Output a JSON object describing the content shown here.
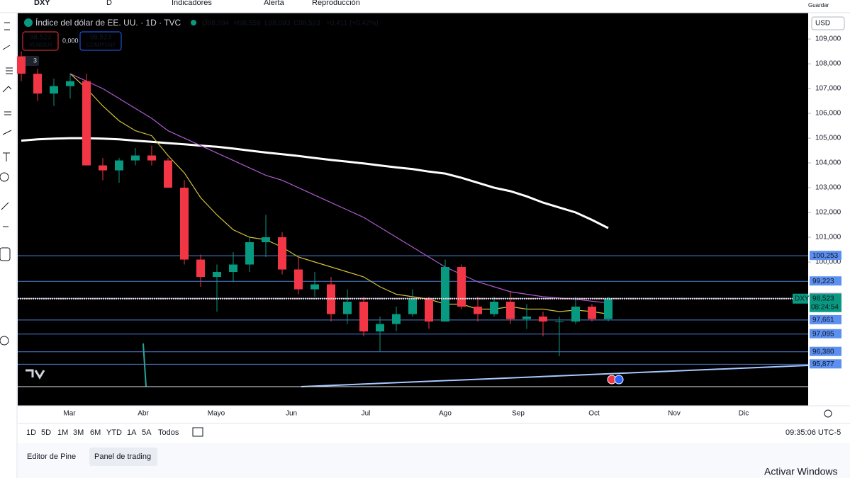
{
  "toolbar": {
    "symbol": "DXY",
    "interval": "D",
    "indicators": "Indicadores",
    "alert": "Alerta",
    "replay": "Reproducción",
    "save": "Guardar"
  },
  "legend": {
    "title": "Índice del dólar de EE. UU. · 1D · TVC",
    "open": "O98,094",
    "high": "H98,559",
    "low": "L98,093",
    "close": "C98,523",
    "change": "+0,411 (+0,42%)",
    "indicators_count": "3"
  },
  "trade": {
    "sell_price": "98,523",
    "sell": "VENDER",
    "spread": "0,000",
    "buy_price": "98,523",
    "buy": "COMPRAR"
  },
  "currency": "USD",
  "chart_data": {
    "type": "candlestick",
    "ylim": [
      94.2,
      110.06
    ],
    "yticks": [
      {
        "value": 109,
        "label": "109,000"
      },
      {
        "value": 108,
        "label": "108,000"
      },
      {
        "value": 107,
        "label": "107,000"
      },
      {
        "value": 106,
        "label": "106,000"
      },
      {
        "value": 105,
        "label": "105,000"
      },
      {
        "value": 104,
        "label": "104,000"
      },
      {
        "value": 103,
        "label": "103,000"
      },
      {
        "value": 102,
        "label": "102,000"
      },
      {
        "value": 101,
        "label": "101,000"
      },
      {
        "value": 100,
        "label": "100,000"
      }
    ],
    "months": [
      "Mar",
      "Abr",
      "Mayo",
      "Jun",
      "Jul",
      "Ago",
      "Sep",
      "Oct",
      "Nov",
      "Dic"
    ],
    "up_color": "#089981",
    "down_color": "#f23645",
    "candles": [
      [
        108.3,
        108.5,
        107.3,
        107.6
      ],
      [
        107.6,
        107.8,
        106.5,
        106.8
      ],
      [
        106.8,
        107.4,
        106.3,
        107.1
      ],
      [
        107.1,
        107.6,
        106.6,
        107.3
      ],
      [
        107.3,
        107.6,
        103.9,
        103.9
      ],
      [
        103.9,
        104.2,
        103.3,
        103.7
      ],
      [
        103.7,
        104.2,
        103.2,
        104.1
      ],
      [
        104.1,
        104.6,
        103.9,
        104.3
      ],
      [
        104.3,
        104.7,
        103.9,
        104.1
      ],
      [
        104.1,
        104.2,
        103.0,
        103.0
      ],
      [
        103.0,
        103.3,
        99.9,
        100.1
      ],
      [
        100.1,
        100.3,
        99.0,
        99.4
      ],
      [
        99.4,
        99.9,
        98.0,
        99.6
      ],
      [
        99.6,
        100.4,
        99.2,
        99.9
      ],
      [
        99.9,
        101.0,
        99.6,
        100.8
      ],
      [
        100.8,
        101.9,
        100.2,
        101.0
      ],
      [
        101.0,
        101.2,
        99.5,
        99.7
      ],
      [
        99.7,
        100.2,
        98.7,
        98.9
      ],
      [
        98.9,
        99.6,
        98.6,
        99.1
      ],
      [
        99.1,
        99.4,
        97.6,
        97.9
      ],
      [
        97.9,
        98.9,
        97.5,
        98.4
      ],
      [
        98.4,
        98.6,
        97.0,
        97.2
      ],
      [
        97.2,
        97.8,
        96.4,
        97.5
      ],
      [
        97.5,
        98.2,
        97.2,
        97.9
      ],
      [
        97.9,
        98.9,
        97.8,
        98.5
      ],
      [
        98.5,
        98.6,
        97.3,
        97.6
      ],
      [
        97.6,
        100.1,
        97.6,
        99.8
      ],
      [
        99.8,
        99.9,
        98.1,
        98.2
      ],
      [
        98.2,
        98.6,
        97.6,
        97.9
      ],
      [
        97.9,
        98.6,
        97.8,
        98.4
      ],
      [
        98.4,
        98.8,
        97.5,
        97.7
      ],
      [
        97.7,
        98.3,
        97.3,
        97.8
      ],
      [
        97.8,
        98.0,
        97.0,
        97.6
      ],
      [
        97.6,
        97.8,
        96.2,
        97.6
      ],
      [
        97.6,
        98.6,
        97.5,
        98.2
      ],
      [
        98.2,
        98.3,
        97.6,
        97.7
      ],
      [
        97.7,
        98.6,
        97.6,
        98.523
      ]
    ],
    "series": [
      {
        "color": "#ffffff",
        "values": [
          104.9,
          104.95,
          104.98,
          105.0,
          105.0,
          104.98,
          104.95,
          104.9,
          104.85,
          104.8,
          104.75,
          104.7,
          104.65,
          104.58,
          104.5,
          104.42,
          104.35,
          104.28,
          104.2,
          104.12,
          104.05,
          103.98,
          103.9,
          103.82,
          103.75,
          103.65,
          103.57,
          103.4,
          103.2,
          103.0,
          102.86,
          102.65,
          102.4,
          102.2,
          102.0,
          101.7,
          101.37
        ]
      },
      {
        "color": "#b05bd0",
        "values": [
          null,
          null,
          null,
          107.6,
          107.3,
          107.0,
          106.6,
          106.2,
          105.8,
          105.3,
          105.0,
          104.7,
          104.4,
          104.1,
          103.8,
          103.5,
          103.3,
          103.0,
          102.7,
          102.4,
          102.1,
          101.8,
          101.4,
          101.0,
          100.6,
          100.2,
          99.8,
          99.5,
          99.2,
          99.0,
          98.8,
          98.7,
          98.6,
          98.55,
          98.5,
          98.42,
          98.35
        ]
      },
      {
        "color": "#d4c23a",
        "values": [
          null,
          null,
          null,
          107.6,
          107.0,
          106.3,
          105.7,
          105.3,
          105.1,
          104.3,
          103.6,
          102.6,
          101.9,
          101.3,
          101.0,
          100.9,
          100.6,
          100.2,
          100.0,
          99.8,
          99.6,
          99.4,
          99.0,
          98.7,
          98.6,
          98.5,
          98.3,
          98.3,
          98.1,
          98.1,
          98.2,
          98.1,
          98.1,
          98.0,
          98.06,
          98.0,
          97.9
        ]
      }
    ],
    "levels": [
      {
        "value": 100.253,
        "label": "100,253",
        "color": "#5b8ff0"
      },
      {
        "value": 99.223,
        "label": "99,223",
        "color": "#5b8ff0"
      },
      {
        "value": 98.571,
        "label": "98,571",
        "color": "#f7c6c6"
      },
      {
        "value": 98.536,
        "label": "98,536",
        "color": "#5b8ff0"
      },
      {
        "value": 97.661,
        "label": "97,661",
        "color": "#5b8ff0"
      },
      {
        "value": 97.095,
        "label": "97,095",
        "color": "#5b8ff0"
      },
      {
        "value": 96.38,
        "label": "96,380",
        "color": "#5b8ff0"
      },
      {
        "value": 95.877,
        "label": "95,877",
        "color": "#5b8ff0"
      }
    ],
    "current": {
      "symbol": "DXY",
      "value": 98.523,
      "label": "98,523",
      "countdown": "08:24:54",
      "color": "#089981"
    }
  },
  "ranges": [
    "1D",
    "5D",
    "1M",
    "3M",
    "6M",
    "YTD",
    "1A",
    "5A",
    "Todos"
  ],
  "clock": "09:35:06 UTC-5",
  "tabs": [
    "Editor de Pine",
    "Panel de trading"
  ],
  "watermark": "Activar Windows"
}
